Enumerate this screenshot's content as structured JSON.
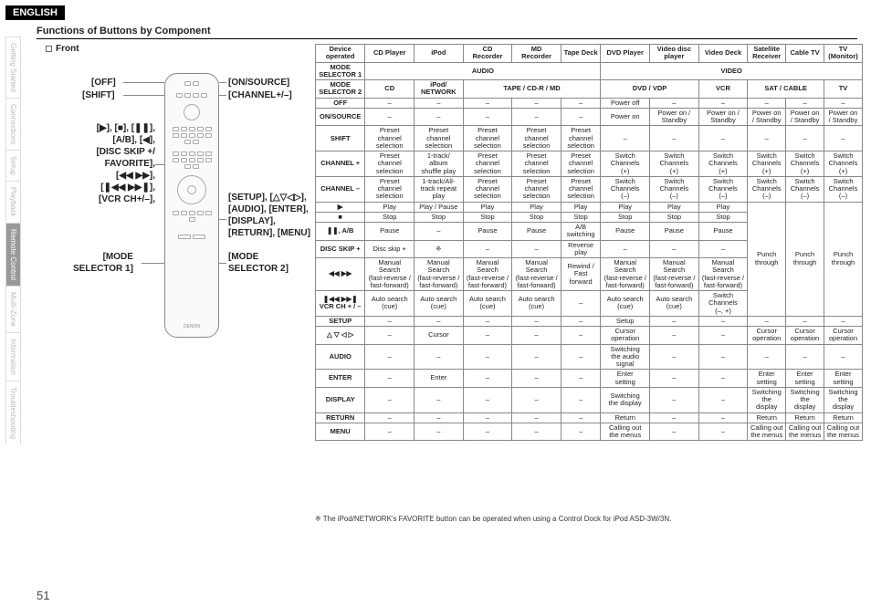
{
  "lang_badge": "ENGLISH",
  "title": "Functions of Buttons by Component",
  "front_label": "Front",
  "page_number": "51",
  "footnote": "※ The iPod/NETWORK's FAVORITE button can be operated when using a Control Dock for iPod ASD-3W/3N.",
  "tabs": [
    "Getting Started",
    "Connections",
    "Setup",
    "Playback",
    "Remote Control",
    "Multi-Zone",
    "Information",
    "Troubleshooting"
  ],
  "active_tab_index": 4,
  "callouts": {
    "off": "[OFF]",
    "shift": "[SHIFT]",
    "onsource": "[ON/SOURCE]",
    "channel": "[CHANNEL+/–]",
    "playgroup": "[▶], [■], [❚❚],\n[A/B], [◀],\n[DISC SKIP +/\nFAVORITE],\n[◀◀ ▶▶],\n[❚◀◀ ▶▶❚],\n[VCR CH+/–],",
    "setupgroup": "[SETUP], [△▽◁▷],\n[AUDIO], [ENTER],\n[DISPLAY],\n[RETURN], [MENU]",
    "mode1": "[MODE\nSELECTOR 1]",
    "mode2": "[MODE\nSELECTOR 2]"
  },
  "table": {
    "device_header": "Device\noperated",
    "columns": [
      "CD Player",
      "iPod",
      "CD\nRecorder",
      "MD\nRecorder",
      "Tape Deck",
      "DVD Player",
      "Video disc\nplayer",
      "Video Deck",
      "Satellite\nReceiver",
      "Cable TV",
      "TV\n(Monitor)"
    ],
    "mode1_row": {
      "label": "MODE\nSELECTOR 1",
      "audio": "AUDIO",
      "video": "VIDEO"
    },
    "mode2_row": {
      "label": "MODE\nSELECTOR 2",
      "groups": [
        "CD",
        "iPod/\nNETWORK",
        "TAPE / CD-R / MD",
        "DVD / VDP",
        "VCR",
        "SAT / CABLE",
        "TV"
      ]
    },
    "rows": [
      {
        "label": "OFF",
        "cells": [
          "–",
          "–",
          "–",
          "–",
          "–",
          "Power off",
          "–",
          "–",
          "–",
          "–",
          "–"
        ]
      },
      {
        "label": "ON/SOURCE",
        "cells": [
          "–",
          "–",
          "–",
          "–",
          "–",
          "Power on",
          "Power on /\nStandby",
          "Power on /\nStandby",
          "Power on\n/ Standby",
          "Power on\n/ Standby",
          "Power on\n/ Standby"
        ]
      },
      {
        "label": "SHIFT",
        "cells": [
          "Preset\nchannel\nselection",
          "Preset\nchannel\nselection",
          "Preset\nchannel\nselection",
          "Preset\nchannel\nselection",
          "Preset\nchannel\nselection",
          "–",
          "–",
          "–",
          "–",
          "–",
          "–"
        ]
      },
      {
        "label": "CHANNEL +",
        "cells": [
          "Preset\nchannel\nselection",
          "1-track/\nalbum\nshuffle play",
          "Preset\nchannel\nselection",
          "Preset\nchannel\nselection",
          "Preset\nchannel\nselection",
          "Switch\nChannels\n(+)",
          "Switch\nChannels\n(+)",
          "Switch\nChannels\n(+)",
          "Switch\nChannels\n(+)",
          "Switch\nChannels\n(+)",
          "Switch\nChannels\n(+)"
        ]
      },
      {
        "label": "CHANNEL –",
        "cells": [
          "Preset\nchannel\nselection",
          "1-track/All-\ntrack repeat\nplay",
          "Preset\nchannel\nselection",
          "Preset\nchannel\nselection",
          "Preset\nchannel\nselection",
          "Switch\nChannels\n(–)",
          "Switch\nChannels\n(–)",
          "Switch\nChannels\n(–)",
          "Switch\nChannels\n(–)",
          "Switch\nChannels\n(–)",
          "Switch\nChannels\n(–)"
        ]
      },
      {
        "label": "▶",
        "cells": [
          "Play",
          "Play / Pause",
          "Play",
          "Play",
          "Play",
          "Play",
          "Play",
          "Play",
          "PT",
          "PT",
          "PT"
        ],
        "punch_start": true
      },
      {
        "label": "■",
        "cells": [
          "Stop",
          "Stop",
          "Stop",
          "Stop",
          "Stop",
          "Stop",
          "Stop",
          "Stop",
          "",
          "",
          ""
        ]
      },
      {
        "label": "❚❚, A/B",
        "cells": [
          "Pause",
          "–",
          "Pause",
          "Pause",
          "A/B\nswitching",
          "Pause",
          "Pause",
          "Pause",
          "",
          "",
          ""
        ]
      },
      {
        "label": "DISC SKIP +",
        "cells": [
          "Disc skip +",
          "※",
          "–",
          "–",
          "Reverse\nplay",
          "–",
          "–",
          "–",
          "",
          "",
          ""
        ]
      },
      {
        "label": "◀◀ ▶▶",
        "cells": [
          "Manual\nSearch\n(fast-reverse /\nfast-forward)",
          "Manual\nSearch\n(fast-reverse /\nfast-forward)",
          "Manual\nSearch\n(fast-reverse /\nfast-forward)",
          "Manual\nSearch\n(fast-reverse /\nfast-forward)",
          "Rewind /\nFast\nforward",
          "Manual\nSearch\n(fast-reverse /\nfast-forward)",
          "Manual\nSearch\n(fast-reverse /\nfast-forward)",
          "Manual\nSearch\n(fast-reverse /\nfast-forward)",
          "",
          "",
          ""
        ]
      },
      {
        "label": "❚◀◀ ▶▶❚\nVCR CH + / –",
        "cells": [
          "Auto search\n(cue)",
          "Auto search\n(cue)",
          "Auto search\n(cue)",
          "Auto search\n(cue)",
          "–",
          "Auto search\n(cue)",
          "Auto search\n(cue)",
          "Switch\nChannels\n(–, +)",
          "",
          "",
          ""
        ]
      },
      {
        "label": "SETUP",
        "cells": [
          "–",
          "–",
          "–",
          "–",
          "–",
          "Setup",
          "–",
          "–",
          "–",
          "–",
          "–"
        ],
        "punch_end": true
      },
      {
        "label": "△ ▽ ◁ ▷",
        "cells": [
          "–",
          "Cursor",
          "–",
          "–",
          "–",
          "Cursor\noperation",
          "–",
          "–",
          "Cursor\noperation",
          "Cursor\noperation",
          "Cursor\noperation"
        ]
      },
      {
        "label": "AUDIO",
        "cells": [
          "–",
          "–",
          "–",
          "–",
          "–",
          "Switching\nthe audio\nsignal",
          "–",
          "–",
          "–",
          "–",
          "–"
        ]
      },
      {
        "label": "ENTER",
        "cells": [
          "–",
          "Enter",
          "–",
          "–",
          "–",
          "Enter\nsetting",
          "–",
          "–",
          "Enter\nsetting",
          "Enter\nsetting",
          "Enter\nsetting"
        ]
      },
      {
        "label": "DISPLAY",
        "cells": [
          "–",
          "–",
          "–",
          "–",
          "–",
          "Switching\nthe display",
          "–",
          "–",
          "Switching\nthe\ndisplay",
          "Switching\nthe\ndisplay",
          "Switching\nthe\ndisplay"
        ]
      },
      {
        "label": "RETURN",
        "cells": [
          "–",
          "–",
          "–",
          "–",
          "–",
          "Return",
          "–",
          "–",
          "Return",
          "Return",
          "Return"
        ]
      },
      {
        "label": "MENU",
        "cells": [
          "–",
          "–",
          "–",
          "–",
          "–",
          "Calling out\nthe menus",
          "–",
          "–",
          "Calling out\nthe menus",
          "Calling out\nthe menus",
          "Calling out\nthe menus"
        ]
      }
    ],
    "punch_through": "Punch\nthrough"
  }
}
